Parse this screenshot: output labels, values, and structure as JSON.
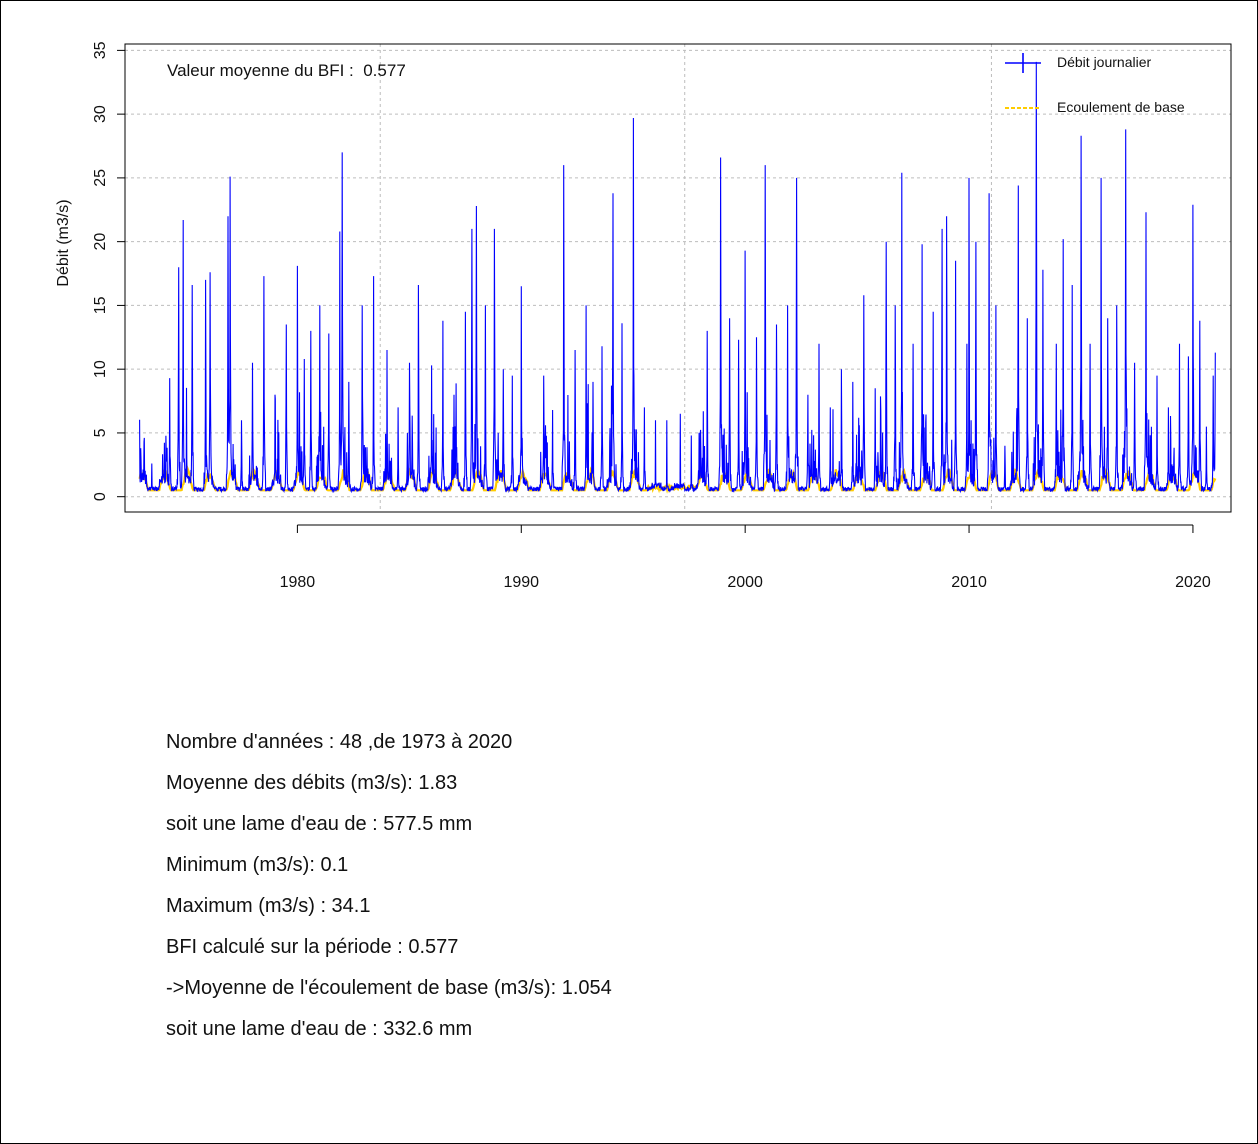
{
  "chart_data": {
    "type": "line",
    "title": "",
    "xlabel": "",
    "ylabel": "Débit (m3/s)",
    "annotation": "Valeur moyenne du BFI :  0.577",
    "xlim": [
      1972.3,
      2021.7
    ],
    "ylim": [
      -1.2,
      35.5
    ],
    "x_ticks": [
      1980,
      1990,
      2000,
      2010,
      2020
    ],
    "y_ticks": [
      0,
      5,
      10,
      15,
      20,
      25,
      30,
      35
    ],
    "grid": true,
    "legend_position": "top-right",
    "series": [
      {
        "name": "Débit journalier",
        "color": "#0000ff",
        "peaks": [
          [
            1973.0,
            3.8
          ],
          [
            1973.5,
            2.6
          ],
          [
            1974.3,
            9.3
          ],
          [
            1974.7,
            18.0
          ],
          [
            1974.9,
            21.7
          ],
          [
            1975.3,
            16.6
          ],
          [
            1975.9,
            17.0
          ],
          [
            1976.1,
            17.6
          ],
          [
            1976.9,
            22.0
          ],
          [
            1977.0,
            25.1
          ],
          [
            1977.5,
            6.0
          ],
          [
            1978.0,
            10.5
          ],
          [
            1978.5,
            17.3
          ],
          [
            1979.0,
            8.0
          ],
          [
            1979.5,
            13.5
          ],
          [
            1980.0,
            18.1
          ],
          [
            1980.3,
            10.8
          ],
          [
            1980.6,
            13.0
          ],
          [
            1981.0,
            15.0
          ],
          [
            1981.4,
            12.8
          ],
          [
            1981.9,
            20.8
          ],
          [
            1982.0,
            27.0
          ],
          [
            1982.3,
            9.0
          ],
          [
            1982.9,
            15.0
          ],
          [
            1983.4,
            17.3
          ],
          [
            1984.0,
            11.5
          ],
          [
            1984.5,
            7.0
          ],
          [
            1985.0,
            10.5
          ],
          [
            1985.4,
            16.6
          ],
          [
            1986.0,
            10.3
          ],
          [
            1986.5,
            13.8
          ],
          [
            1987.0,
            8.0
          ],
          [
            1987.5,
            14.5
          ],
          [
            1987.8,
            21.0
          ],
          [
            1988.0,
            22.8
          ],
          [
            1988.4,
            15.0
          ],
          [
            1988.8,
            21.0
          ],
          [
            1989.2,
            10.0
          ],
          [
            1989.6,
            9.5
          ],
          [
            1990.0,
            16.5
          ],
          [
            1991.0,
            9.5
          ],
          [
            1991.4,
            6.8
          ],
          [
            1991.9,
            26.0
          ],
          [
            1992.4,
            11.5
          ],
          [
            1992.9,
            15.0
          ],
          [
            1993.2,
            9.0
          ],
          [
            1993.6,
            11.8
          ],
          [
            1994.1,
            23.8
          ],
          [
            1994.5,
            13.6
          ],
          [
            1995.0,
            29.7
          ],
          [
            1995.5,
            7.0
          ],
          [
            1996.0,
            6.0
          ],
          [
            1996.5,
            6.0
          ],
          [
            1997.1,
            6.5
          ],
          [
            1997.6,
            4.8
          ],
          [
            1998.0,
            5.0
          ],
          [
            1998.3,
            13.0
          ],
          [
            1998.9,
            26.6
          ],
          [
            1999.3,
            14.0
          ],
          [
            1999.7,
            12.3
          ],
          [
            2000.0,
            19.3
          ],
          [
            2000.5,
            12.5
          ],
          [
            2000.9,
            26.0
          ],
          [
            2001.4,
            13.5
          ],
          [
            2001.9,
            15.0
          ],
          [
            2002.3,
            25.0
          ],
          [
            2002.8,
            8.0
          ],
          [
            2003.3,
            12.0
          ],
          [
            2003.8,
            7.0
          ],
          [
            2004.3,
            10.0
          ],
          [
            2004.8,
            9.0
          ],
          [
            2005.3,
            15.8
          ],
          [
            2005.8,
            8.5
          ],
          [
            2006.3,
            20.0
          ],
          [
            2006.7,
            15.0
          ],
          [
            2007.0,
            25.4
          ],
          [
            2007.5,
            12.0
          ],
          [
            2007.9,
            19.8
          ],
          [
            2008.4,
            14.5
          ],
          [
            2008.8,
            21.0
          ],
          [
            2009.0,
            22.0
          ],
          [
            2009.4,
            18.5
          ],
          [
            2009.9,
            12.0
          ],
          [
            2010.0,
            25.0
          ],
          [
            2010.3,
            20.0
          ],
          [
            2010.9,
            23.8
          ],
          [
            2011.2,
            15.0
          ],
          [
            2011.6,
            4.0
          ],
          [
            2012.2,
            24.4
          ],
          [
            2012.6,
            14.0
          ],
          [
            2013.0,
            34.1
          ],
          [
            2013.3,
            17.8
          ],
          [
            2013.9,
            12.0
          ],
          [
            2014.2,
            20.2
          ],
          [
            2014.6,
            16.6
          ],
          [
            2015.0,
            28.3
          ],
          [
            2015.4,
            12.0
          ],
          [
            2015.9,
            25.0
          ],
          [
            2016.2,
            14.0
          ],
          [
            2016.6,
            15.0
          ],
          [
            2017.0,
            28.8
          ],
          [
            2017.4,
            10.5
          ],
          [
            2017.9,
            22.3
          ],
          [
            2018.4,
            9.5
          ],
          [
            2018.9,
            7.0
          ],
          [
            2019.4,
            12.0
          ],
          [
            2019.8,
            11.0
          ],
          [
            2020.0,
            22.9
          ],
          [
            2020.3,
            13.8
          ],
          [
            2020.6,
            5.5
          ],
          [
            2020.9,
            9.5
          ],
          [
            2021.0,
            11.3
          ]
        ]
      },
      {
        "name": "Ecoulement de base",
        "color": "#ffcc00"
      }
    ]
  },
  "stats": [
    "Nombre d'années : 48 ,de 1973 à 2020",
    "Moyenne des débits (m3/s): 1.83",
    "soit une lame d'eau de : 577.5  mm",
    "Minimum (m3/s): 0.1",
    "Maximum (m3/s) : 34.1",
    "BFI calculé sur la période : 0.577",
    "->Moyenne de l'écoulement de base (m3/s): 1.054",
    "soit une lame d'eau de : 332.6  mm"
  ]
}
